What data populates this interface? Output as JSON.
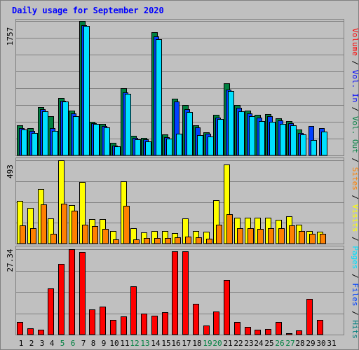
{
  "chart_data": {
    "type": "bar",
    "title": "Daily usage for September 2020",
    "categories": [
      "1",
      "2",
      "3",
      "4",
      "5",
      "6",
      "7",
      "8",
      "9",
      "10",
      "11",
      "12",
      "13",
      "14",
      "15",
      "16",
      "17",
      "18",
      "19",
      "20",
      "21",
      "22",
      "23",
      "24",
      "25",
      "26",
      "27",
      "28",
      "29",
      "30",
      "31"
    ],
    "weekend_days": [
      "5",
      "6",
      "12",
      "13",
      "19",
      "20",
      "26",
      "27"
    ],
    "panels": [
      {
        "id": "hits-files-pages",
        "max_label": "1757",
        "ylim": [
          0,
          1757
        ],
        "series": [
          {
            "name": "Hits",
            "color": "#008040",
            "values": [
              398,
              353,
              633,
              508,
              753,
              588,
              1757,
              443,
              410,
              162,
              883,
              253,
              230,
              1612,
              270,
              741,
              656,
              398,
              303,
              533,
              943,
              663,
              588,
              528,
              543,
              488,
              448,
              343,
              0,
              0,
              0
            ]
          },
          {
            "name": "Files",
            "color": "#0040ff",
            "values": [
              358,
              318,
              603,
              353,
              718,
              553,
              1705,
              418,
              383,
              128,
              828,
              228,
              208,
              1558,
              238,
              708,
              603,
              368,
              283,
              498,
              863,
              623,
              553,
              498,
              508,
              458,
              418,
              293,
              388,
              353,
              0
            ]
          },
          {
            "name": "Pages",
            "color": "#00e0ff",
            "values": [
              343,
              290,
              578,
              318,
              703,
              508,
              1695,
              408,
              368,
              118,
              808,
              213,
              183,
              1518,
              218,
              283,
              568,
              268,
              243,
              478,
              838,
              578,
              508,
              448,
              443,
              408,
              393,
              278,
              198,
              308,
              0
            ]
          }
        ]
      },
      {
        "id": "visits-sites",
        "max_label": "493",
        "ylim": [
          0,
          493
        ],
        "series": [
          {
            "name": "Visits",
            "color": "#ffff00",
            "values": [
              253,
              210,
              323,
              150,
              493,
              226,
              363,
              143,
              143,
              73,
              370,
              93,
              68,
              76,
              76,
              63,
              150,
              76,
              70,
              256,
              470,
              153,
              153,
              153,
              153,
              140,
              163,
              110,
              73,
              70,
              0
            ]
          },
          {
            "name": "Sites",
            "color": "#ff8000",
            "values": [
              106,
              93,
              230,
              56,
              236,
              196,
              113,
              103,
              86,
              26,
              223,
              26,
              33,
              33,
              33,
              36,
              43,
              36,
              30,
              113,
              173,
              93,
              93,
              86,
              93,
              93,
              106,
              76,
              56,
              56,
              0
            ]
          }
        ]
      },
      {
        "id": "volume",
        "max_label": "27.34",
        "ylim": [
          0,
          27.34
        ],
        "series": [
          {
            "name": "Volume",
            "color": "#ff0000",
            "values": [
              4.14,
              1.91,
              1.52,
              14.68,
              22.61,
              27.34,
              26.38,
              7.97,
              8.87,
              4.65,
              5.84,
              15.5,
              6.72,
              6.12,
              7.15,
              26.66,
              26.66,
              9.97,
              2.82,
              7.35,
              17.44,
              4.04,
              2.42,
              1.52,
              1.82,
              4.04,
              0.4,
              1.31,
              11.47,
              4.65,
              0
            ]
          }
        ]
      }
    ],
    "right_legend": [
      {
        "text": "Volume",
        "color": "#ff0000"
      },
      {
        "text": " / ",
        "color": "#000000"
      },
      {
        "text": "Vol. In",
        "color": "#0000ff"
      },
      {
        "text": " / ",
        "color": "#000000"
      },
      {
        "text": "Vol. Out",
        "color": "#008040"
      },
      {
        "text": " / ",
        "color": "#000000"
      },
      {
        "text": "Sites",
        "color": "#ff8000"
      },
      {
        "text": " / ",
        "color": "#000000"
      },
      {
        "text": "Visits",
        "color": "#ffff00"
      },
      {
        "text": " / ",
        "color": "#000000"
      },
      {
        "text": "Pages",
        "color": "#00e0ff"
      },
      {
        "text": " / ",
        "color": "#000000"
      },
      {
        "text": "Files",
        "color": "#0040ff"
      },
      {
        "text": " / ",
        "color": "#000000"
      },
      {
        "text": "Hits",
        "color": "#008080"
      }
    ],
    "colors": {
      "background": "#c0c0c0",
      "plot": "#c0c0c0",
      "title": "#0000ff",
      "weekday_label": "#000000",
      "weekend_label": "#008040"
    }
  }
}
